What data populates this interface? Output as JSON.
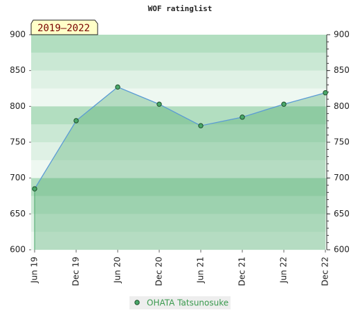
{
  "chart_data": {
    "type": "area",
    "title": "WOF ratinglist",
    "annotation": "2019–2022",
    "categories": [
      "Jun 19",
      "Dec 19",
      "Jun 20",
      "Dec 20",
      "Jun 21",
      "Dec 21",
      "Jun 22",
      "Dec 22"
    ],
    "series": [
      {
        "name": "OHATA Tatsunosuke",
        "color": "#4aa86a",
        "values": [
          685,
          780,
          827,
          803,
          773,
          785,
          803,
          819
        ]
      }
    ],
    "ylim": [
      600,
      900
    ],
    "yticks": [
      600,
      650,
      700,
      750,
      800,
      850,
      900
    ],
    "y2lim": [
      600,
      900
    ],
    "y2ticks": [
      600,
      650,
      700,
      750,
      800,
      850,
      900
    ]
  }
}
